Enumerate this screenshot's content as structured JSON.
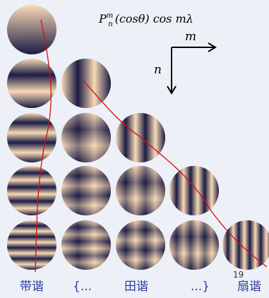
{
  "formula": {
    "base": "P",
    "sub": "n",
    "sup": "m",
    "rest": "(cosθ) cos mλ"
  },
  "axes": {
    "m": "m",
    "n": "n"
  },
  "bottom_labels": [
    "带谐",
    "{...",
    "田谐",
    "...}",
    "扇谐"
  ],
  "page_number": "19"
}
